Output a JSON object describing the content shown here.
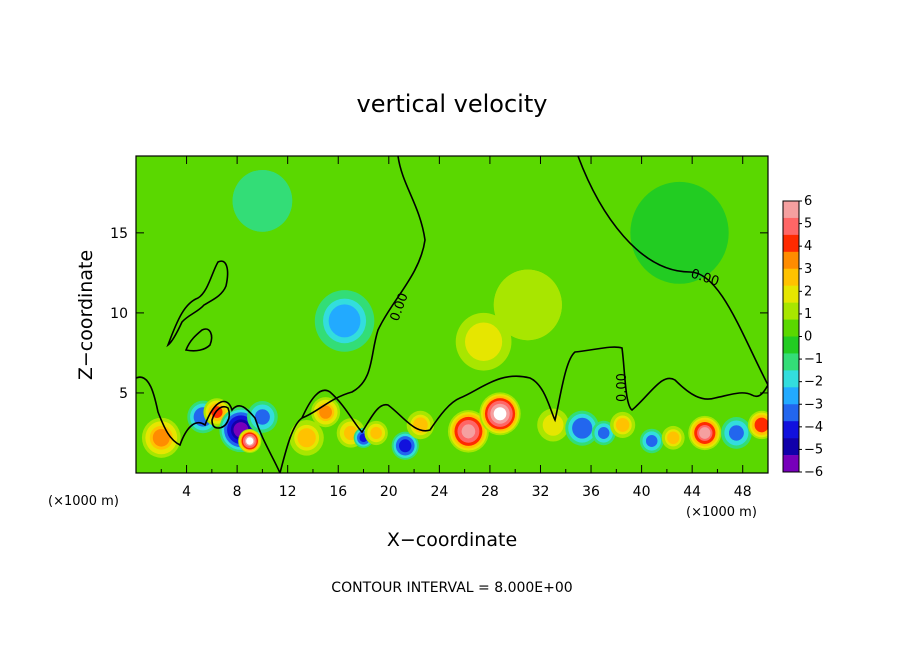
{
  "chart_data": {
    "type": "heatmap",
    "title": "vertical velocity",
    "xlabel": "X−coordinate",
    "ylabel": "Z−coordinate",
    "x_unit_left": "(×1000 m)",
    "x_unit_right": "(×1000 m)",
    "x_ticks": [
      "4",
      "8",
      "12",
      "16",
      "20",
      "24",
      "28",
      "32",
      "36",
      "40",
      "44",
      "48"
    ],
    "y_ticks": [
      "5",
      "10",
      "15"
    ],
    "xlim": [
      0,
      50
    ],
    "ylim": [
      0,
      19.8
    ],
    "contour_labels": [
      "0.00",
      "0.00",
      "0.00"
    ],
    "annotation": "CONTOUR INTERVAL = 8.000E+00",
    "colorbar": {
      "labels": [
        "6",
        "5",
        "4",
        "3",
        "2",
        "1",
        "0",
        "−1",
        "−2",
        "−3",
        "−4",
        "−5",
        "−6"
      ],
      "colors": [
        "#f5a0a0",
        "#ff6666",
        "#ff2a00",
        "#ff8c00",
        "#ffc200",
        "#e6e600",
        "#a8e600",
        "#5ad800",
        "#22cc22",
        "#33dd77",
        "#33dddd",
        "#22aaff",
        "#2266ee",
        "#1111dd",
        "#1100aa",
        "#7700bb"
      ]
    },
    "grid": false,
    "legend": "colorbar-right",
    "blobs": [
      {
        "x": 2,
        "z": 2.2,
        "w": 3.5,
        "r": 1.6
      },
      {
        "x": 5.3,
        "z": 3.5,
        "w": -3.5,
        "r": 1.3
      },
      {
        "x": 6.4,
        "z": 3.8,
        "w": 3.8,
        "r": 1.1
      },
      {
        "x": 8.3,
        "z": 2.7,
        "w": -5.5,
        "r": 1.7
      },
      {
        "x": 9,
        "z": 2,
        "w": 6.5,
        "r": 0.9
      },
      {
        "x": 10,
        "z": 3.5,
        "w": -3,
        "r": 1.3
      },
      {
        "x": 13.5,
        "z": 2.2,
        "w": 2.5,
        "r": 1.5
      },
      {
        "x": 15,
        "z": 3.8,
        "w": 3.5,
        "r": 1.2
      },
      {
        "x": 17,
        "z": 2.5,
        "w": 3,
        "r": 1.2
      },
      {
        "x": 16.5,
        "z": 9.5,
        "w": -2.5,
        "r": 2.6
      },
      {
        "x": 18,
        "z": 2.2,
        "w": -4,
        "r": 0.8
      },
      {
        "x": 19,
        "z": 2.5,
        "w": 2.8,
        "r": 1
      },
      {
        "x": 21.3,
        "z": 1.7,
        "w": -4.2,
        "r": 1.1
      },
      {
        "x": 22.5,
        "z": 3,
        "w": 2.5,
        "r": 1.2
      },
      {
        "x": 26.3,
        "z": 2.6,
        "w": 6,
        "r": 1.6
      },
      {
        "x": 28.8,
        "z": 3.7,
        "w": 6.8,
        "r": 1.6
      },
      {
        "x": 27.5,
        "z": 8.2,
        "w": 2.2,
        "r": 2.5
      },
      {
        "x": 31,
        "z": 10.5,
        "w": 1,
        "r": 4
      },
      {
        "x": 33,
        "z": 3,
        "w": 1.8,
        "r": 1.5
      },
      {
        "x": 35.3,
        "z": 2.8,
        "w": -3.5,
        "r": 1.4
      },
      {
        "x": 37,
        "z": 2.5,
        "w": -3,
        "r": 1
      },
      {
        "x": 38.5,
        "z": 3,
        "w": 2.5,
        "r": 1.1
      },
      {
        "x": 40.8,
        "z": 2,
        "w": -3,
        "r": 1
      },
      {
        "x": 42.5,
        "z": 2.2,
        "w": 2.5,
        "r": 1
      },
      {
        "x": 45,
        "z": 2.5,
        "w": 5.5,
        "r": 1.3
      },
      {
        "x": 47.5,
        "z": 2.5,
        "w": -3,
        "r": 1.3
      },
      {
        "x": 49.5,
        "z": 3,
        "w": 4.5,
        "r": 1.1
      },
      {
        "x": 10,
        "z": 17,
        "w": -1,
        "r": 3.5
      },
      {
        "x": 43,
        "z": 15,
        "w": -0.6,
        "r": 5
      }
    ]
  }
}
